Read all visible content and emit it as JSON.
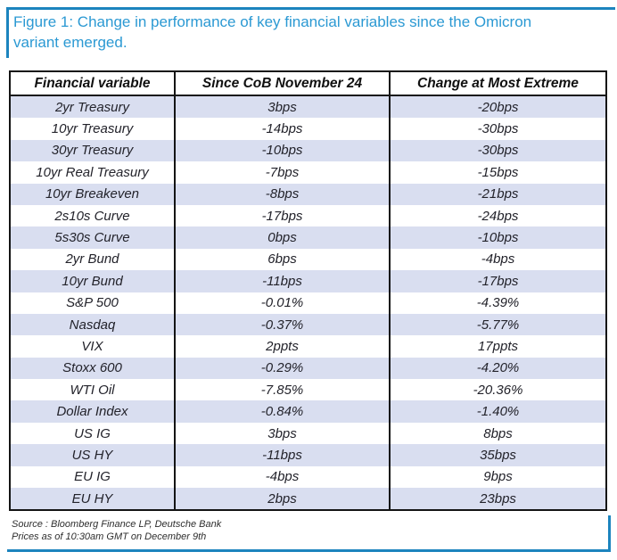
{
  "chart_data": {
    "type": "table",
    "title": "Figure 1: Change in performance of key financial variables since the Omicron variant emerged.",
    "columns": [
      "Financial variable",
      "Since CoB November 24",
      "Change at Most Extreme"
    ],
    "rows": [
      [
        "2yr Treasury",
        "3bps",
        "-20bps"
      ],
      [
        "10yr Treasury",
        "-14bps",
        "-30bps"
      ],
      [
        "30yr Treasury",
        "-10bps",
        "-30bps"
      ],
      [
        "10yr Real Treasury",
        "-7bps",
        "-15bps"
      ],
      [
        "10yr Breakeven",
        "-8bps",
        "-21bps"
      ],
      [
        "2s10s Curve",
        "-17bps",
        "-24bps"
      ],
      [
        "5s30s Curve",
        "0bps",
        "-10bps"
      ],
      [
        "2yr Bund",
        "6bps",
        "-4bps"
      ],
      [
        "10yr Bund",
        "-11bps",
        "-17bps"
      ],
      [
        "S&P 500",
        "-0.01%",
        "-4.39%"
      ],
      [
        "Nasdaq",
        "-0.37%",
        "-5.77%"
      ],
      [
        "VIX",
        "2ppts",
        "17ppts"
      ],
      [
        "Stoxx 600",
        "-0.29%",
        "-4.20%"
      ],
      [
        "WTI Oil",
        "-7.85%",
        "-20.36%"
      ],
      [
        "Dollar Index",
        "-0.84%",
        "-1.40%"
      ],
      [
        "US IG",
        "3bps",
        "8bps"
      ],
      [
        "US HY",
        "-11bps",
        "35bps"
      ],
      [
        "EU IG",
        "-4bps",
        "9bps"
      ],
      [
        "EU HY",
        "2bps",
        "23bps"
      ]
    ],
    "source_line1": "Source : Bloomberg Finance LP, Deutsche Bank",
    "source_line2": "Prices as of 10:30am GMT on December 9th",
    "legend_position": "none",
    "grid": "row-shading-alternate"
  },
  "colors": {
    "title_blue": "#2b99d3",
    "frame_blue": "#1c84be",
    "row_shade": "#d9def0",
    "table_border": "#141414",
    "text": "#23232b"
  }
}
